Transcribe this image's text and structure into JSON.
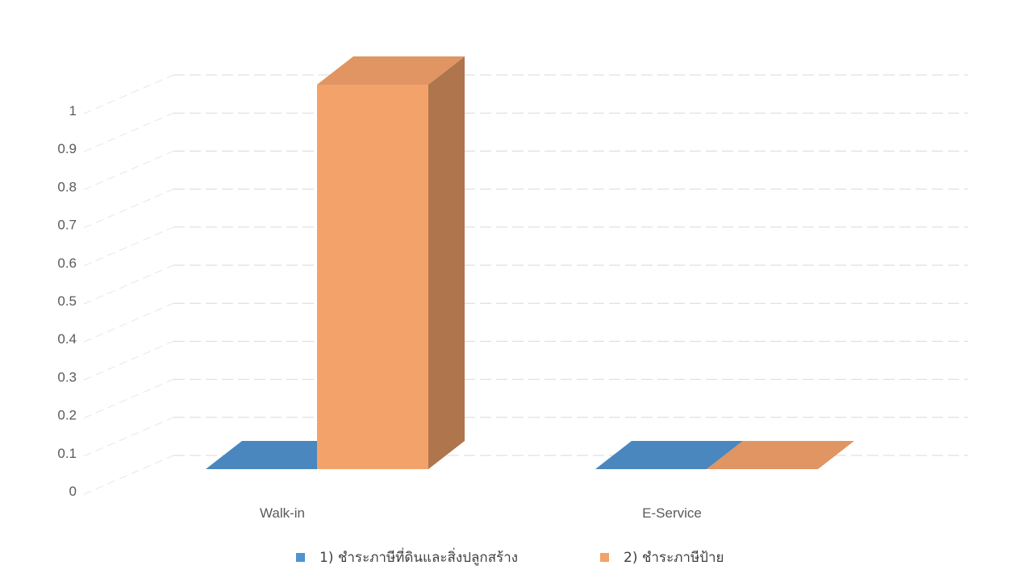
{
  "chart_data": {
    "type": "bar",
    "style": "3d-column",
    "title": "",
    "xlabel": "",
    "ylabel": "",
    "categories": [
      "Walk-in",
      "E-Service"
    ],
    "series": [
      {
        "name": "1) ชำระภาษีที่ดินและสิ่งปลูกสร้าง",
        "values": [
          0,
          0
        ],
        "color": "#4f93cf"
      },
      {
        "name": "2) ชำระภาษีป้าย",
        "values": [
          1,
          0
        ],
        "color": "#f3a26a"
      }
    ],
    "ylim": [
      0,
      1
    ],
    "yticks": [
      "0",
      "0.1",
      "0.2",
      "0.3",
      "0.4",
      "0.5",
      "0.6",
      "0.7",
      "0.8",
      "0.9",
      "1"
    ],
    "grid": true,
    "legend": "bottom"
  }
}
